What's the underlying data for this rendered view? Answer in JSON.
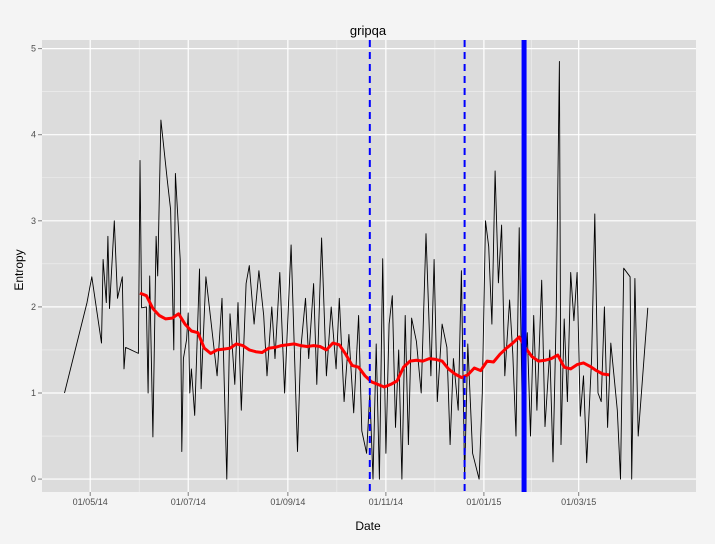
{
  "chart_data": {
    "type": "line",
    "title": "gripqa",
    "xlabel": "Date",
    "ylabel": "Entropy",
    "x_axis_type": "date",
    "xlim": [
      "2014-04-01",
      "2015-05-13"
    ],
    "ylim": [
      -0.15,
      5.1
    ],
    "x_ticks": [
      {
        "date": "2014-05-01",
        "label": "01/05/14"
      },
      {
        "date": "2014-07-01",
        "label": "01/07/14"
      },
      {
        "date": "2014-09-01",
        "label": "01/09/14"
      },
      {
        "date": "2014-11-01",
        "label": "01/11/14"
      },
      {
        "date": "2015-01-01",
        "label": "01/01/15"
      },
      {
        "date": "2015-03-01",
        "label": "01/03/15"
      }
    ],
    "y_ticks": [
      0,
      1,
      2,
      3,
      4,
      5
    ],
    "grid": true,
    "colors": {
      "panel_background": "#dcdcdc",
      "grid": "#ffffff",
      "raw_series": "#000000",
      "smoothed_series": "#ff0000",
      "event_lines": "#0000ff"
    },
    "series": [
      {
        "style": "thin-black-line",
        "points": [
          [
            "2014-04-15",
            1.0
          ],
          [
            "2014-04-29",
            2.05
          ],
          [
            "2014-05-02",
            2.35
          ],
          [
            "2014-05-08",
            1.58
          ],
          [
            "2014-05-09",
            2.55
          ],
          [
            "2014-05-11",
            2.05
          ],
          [
            "2014-05-12",
            2.82
          ],
          [
            "2014-05-13",
            1.98
          ],
          [
            "2014-05-16",
            3.0
          ],
          [
            "2014-05-18",
            2.1
          ],
          [
            "2014-05-21",
            2.35
          ],
          [
            "2014-05-22",
            1.28
          ],
          [
            "2014-05-23",
            1.53
          ],
          [
            "2014-05-31",
            1.46
          ],
          [
            "2014-06-01",
            3.7
          ],
          [
            "2014-06-02",
            1.99
          ],
          [
            "2014-06-05",
            2.0
          ],
          [
            "2014-06-06",
            1.0
          ],
          [
            "2014-06-07",
            2.36
          ],
          [
            "2014-06-09",
            0.49
          ],
          [
            "2014-06-11",
            2.82
          ],
          [
            "2014-06-12",
            2.36
          ],
          [
            "2014-06-14",
            4.17
          ],
          [
            "2014-06-18",
            3.47
          ],
          [
            "2014-06-20",
            3.13
          ],
          [
            "2014-06-22",
            1.5
          ],
          [
            "2014-06-23",
            3.55
          ],
          [
            "2014-06-26",
            2.55
          ],
          [
            "2014-06-27",
            0.32
          ],
          [
            "2014-06-28",
            1.4
          ],
          [
            "2014-06-30",
            1.62
          ],
          [
            "2014-07-01",
            1.93
          ],
          [
            "2014-07-02",
            1.0
          ],
          [
            "2014-07-03",
            1.28
          ],
          [
            "2014-07-05",
            0.74
          ],
          [
            "2014-07-08",
            2.44
          ],
          [
            "2014-07-09",
            1.05
          ],
          [
            "2014-07-12",
            2.35
          ],
          [
            "2014-07-15",
            1.86
          ],
          [
            "2014-07-19",
            1.2
          ],
          [
            "2014-07-22",
            2.1
          ],
          [
            "2014-07-25",
            0.0
          ],
          [
            "2014-07-27",
            1.92
          ],
          [
            "2014-07-30",
            1.1
          ],
          [
            "2014-08-01",
            2.05
          ],
          [
            "2014-08-03",
            0.8
          ],
          [
            "2014-08-06",
            2.27
          ],
          [
            "2014-08-08",
            2.48
          ],
          [
            "2014-08-11",
            1.8
          ],
          [
            "2014-08-14",
            2.42
          ],
          [
            "2014-08-17",
            1.9
          ],
          [
            "2014-08-19",
            1.2
          ],
          [
            "2014-08-22",
            2.0
          ],
          [
            "2014-08-24",
            1.4
          ],
          [
            "2014-08-27",
            2.4
          ],
          [
            "2014-08-30",
            1.0
          ],
          [
            "2014-09-03",
            2.72
          ],
          [
            "2014-09-07",
            0.32
          ],
          [
            "2014-09-09",
            1.5
          ],
          [
            "2014-09-12",
            2.1
          ],
          [
            "2014-09-14",
            1.4
          ],
          [
            "2014-09-17",
            2.27
          ],
          [
            "2014-09-19",
            1.1
          ],
          [
            "2014-09-22",
            2.8
          ],
          [
            "2014-09-25",
            1.2
          ],
          [
            "2014-09-28",
            2.0
          ],
          [
            "2014-10-01",
            1.28
          ],
          [
            "2014-10-03",
            2.1
          ],
          [
            "2014-10-06",
            0.9
          ],
          [
            "2014-10-09",
            1.68
          ],
          [
            "2014-10-12",
            0.77
          ],
          [
            "2014-10-15",
            1.9
          ],
          [
            "2014-10-17",
            0.56
          ],
          [
            "2014-10-20",
            0.3
          ],
          [
            "2014-10-22",
            1.0
          ],
          [
            "2014-10-24",
            0.0
          ],
          [
            "2014-10-26",
            1.57
          ],
          [
            "2014-10-28",
            0.0
          ],
          [
            "2014-10-30",
            2.56
          ],
          [
            "2014-11-01",
            0.3
          ],
          [
            "2014-11-03",
            1.8
          ],
          [
            "2014-11-05",
            2.13
          ],
          [
            "2014-11-07",
            0.6
          ],
          [
            "2014-11-09",
            1.5
          ],
          [
            "2014-11-11",
            0.0
          ],
          [
            "2014-11-13",
            1.9
          ],
          [
            "2014-11-15",
            0.4
          ],
          [
            "2014-11-17",
            1.87
          ],
          [
            "2014-11-20",
            1.6
          ],
          [
            "2014-11-23",
            1.0
          ],
          [
            "2014-11-26",
            2.85
          ],
          [
            "2014-11-29",
            1.2
          ],
          [
            "2014-12-01",
            2.55
          ],
          [
            "2014-12-03",
            0.9
          ],
          [
            "2014-12-06",
            1.8
          ],
          [
            "2014-12-09",
            1.53
          ],
          [
            "2014-12-11",
            0.4
          ],
          [
            "2014-12-13",
            1.4
          ],
          [
            "2014-12-16",
            0.8
          ],
          [
            "2014-12-18",
            2.42
          ],
          [
            "2014-12-20",
            0.0
          ],
          [
            "2014-12-22",
            1.57
          ],
          [
            "2014-12-25",
            0.3
          ],
          [
            "2014-12-29",
            0.0
          ],
          [
            "2014-12-31",
            1.0
          ],
          [
            "2015-01-02",
            3.0
          ],
          [
            "2015-01-04",
            2.7
          ],
          [
            "2015-01-06",
            1.8
          ],
          [
            "2015-01-08",
            3.58
          ],
          [
            "2015-01-10",
            2.28
          ],
          [
            "2015-01-12",
            2.95
          ],
          [
            "2015-01-14",
            1.2
          ],
          [
            "2015-01-17",
            2.08
          ],
          [
            "2015-01-19",
            1.45
          ],
          [
            "2015-01-21",
            0.5
          ],
          [
            "2015-01-23",
            2.92
          ],
          [
            "2015-01-25",
            0.62
          ],
          [
            "2015-01-28",
            1.7
          ],
          [
            "2015-01-30",
            0.5
          ],
          [
            "2015-02-01",
            1.9
          ],
          [
            "2015-02-03",
            0.8
          ],
          [
            "2015-02-06",
            2.31
          ],
          [
            "2015-02-08",
            0.61
          ],
          [
            "2015-02-11",
            1.5
          ],
          [
            "2015-02-13",
            0.2
          ],
          [
            "2015-02-15",
            1.9
          ],
          [
            "2015-02-17",
            4.85
          ],
          [
            "2015-02-18",
            0.4
          ],
          [
            "2015-02-20",
            1.86
          ],
          [
            "2015-02-22",
            0.9
          ],
          [
            "2015-02-24",
            2.4
          ],
          [
            "2015-02-26",
            1.84
          ],
          [
            "2015-02-28",
            2.4
          ],
          [
            "2015-03-02",
            0.73
          ],
          [
            "2015-03-04",
            1.2
          ],
          [
            "2015-03-06",
            0.19
          ],
          [
            "2015-03-09",
            1.4
          ],
          [
            "2015-03-11",
            3.08
          ],
          [
            "2015-03-13",
            1.0
          ],
          [
            "2015-03-15",
            0.9
          ],
          [
            "2015-03-17",
            2.0
          ],
          [
            "2015-03-19",
            0.6
          ],
          [
            "2015-03-21",
            1.58
          ],
          [
            "2015-03-23",
            1.2
          ],
          [
            "2015-03-25",
            0.8
          ],
          [
            "2015-03-27",
            0.0
          ],
          [
            "2015-03-29",
            2.45
          ],
          [
            "2015-04-02",
            2.35
          ],
          [
            "2015-04-03",
            0.0
          ],
          [
            "2015-04-05",
            2.33
          ],
          [
            "2015-04-07",
            0.5
          ],
          [
            "2015-04-13",
            1.99
          ]
        ]
      },
      {
        "style": "thick-red-smoothed-line",
        "points": [
          [
            "2014-06-01",
            2.16
          ],
          [
            "2014-06-05",
            2.13
          ],
          [
            "2014-06-09",
            1.98
          ],
          [
            "2014-06-13",
            1.9
          ],
          [
            "2014-06-17",
            1.86
          ],
          [
            "2014-06-21",
            1.87
          ],
          [
            "2014-06-25",
            1.92
          ],
          [
            "2014-06-29",
            1.8
          ],
          [
            "2014-07-03",
            1.72
          ],
          [
            "2014-07-07",
            1.7
          ],
          [
            "2014-07-11",
            1.52
          ],
          [
            "2014-07-15",
            1.46
          ],
          [
            "2014-07-19",
            1.5
          ],
          [
            "2014-07-23",
            1.51
          ],
          [
            "2014-07-27",
            1.52
          ],
          [
            "2014-07-31",
            1.57
          ],
          [
            "2014-08-04",
            1.55
          ],
          [
            "2014-08-08",
            1.5
          ],
          [
            "2014-08-12",
            1.48
          ],
          [
            "2014-08-16",
            1.47
          ],
          [
            "2014-08-20",
            1.52
          ],
          [
            "2014-08-24",
            1.53
          ],
          [
            "2014-08-28",
            1.55
          ],
          [
            "2014-09-01",
            1.56
          ],
          [
            "2014-09-05",
            1.57
          ],
          [
            "2014-09-09",
            1.55
          ],
          [
            "2014-09-13",
            1.54
          ],
          [
            "2014-09-17",
            1.55
          ],
          [
            "2014-09-21",
            1.54
          ],
          [
            "2014-09-25",
            1.5
          ],
          [
            "2014-09-29",
            1.58
          ],
          [
            "2014-10-03",
            1.56
          ],
          [
            "2014-10-07",
            1.45
          ],
          [
            "2014-10-11",
            1.32
          ],
          [
            "2014-10-15",
            1.3
          ],
          [
            "2014-10-19",
            1.2
          ],
          [
            "2014-10-23",
            1.13
          ],
          [
            "2014-10-27",
            1.1
          ],
          [
            "2014-10-31",
            1.07
          ],
          [
            "2014-11-04",
            1.1
          ],
          [
            "2014-11-08",
            1.14
          ],
          [
            "2014-11-12",
            1.3
          ],
          [
            "2014-11-16",
            1.37
          ],
          [
            "2014-11-20",
            1.38
          ],
          [
            "2014-11-24",
            1.37
          ],
          [
            "2014-11-28",
            1.4
          ],
          [
            "2014-12-02",
            1.39
          ],
          [
            "2014-12-06",
            1.37
          ],
          [
            "2014-12-10",
            1.28
          ],
          [
            "2014-12-14",
            1.22
          ],
          [
            "2014-12-18",
            1.18
          ],
          [
            "2014-12-22",
            1.21
          ],
          [
            "2014-12-26",
            1.29
          ],
          [
            "2014-12-30",
            1.26
          ],
          [
            "2015-01-03",
            1.37
          ],
          [
            "2015-01-07",
            1.36
          ],
          [
            "2015-01-11",
            1.45
          ],
          [
            "2015-01-15",
            1.52
          ],
          [
            "2015-01-19",
            1.58
          ],
          [
            "2015-01-23",
            1.65
          ],
          [
            "2015-01-27",
            1.52
          ],
          [
            "2015-01-31",
            1.42
          ],
          [
            "2015-02-04",
            1.37
          ],
          [
            "2015-02-08",
            1.38
          ],
          [
            "2015-02-12",
            1.4
          ],
          [
            "2015-02-16",
            1.44
          ],
          [
            "2015-02-20",
            1.3
          ],
          [
            "2015-02-24",
            1.28
          ],
          [
            "2015-02-28",
            1.33
          ],
          [
            "2015-03-04",
            1.35
          ],
          [
            "2015-03-08",
            1.31
          ],
          [
            "2015-03-12",
            1.26
          ],
          [
            "2015-03-16",
            1.22
          ],
          [
            "2015-03-20",
            1.21
          ]
        ]
      }
    ],
    "vlines": [
      {
        "date": "2014-10-22",
        "style": "dashed-blue"
      },
      {
        "date": "2014-12-20",
        "style": "dashed-blue"
      },
      {
        "date": "2015-01-26",
        "style": "solid-thick-blue"
      }
    ]
  }
}
